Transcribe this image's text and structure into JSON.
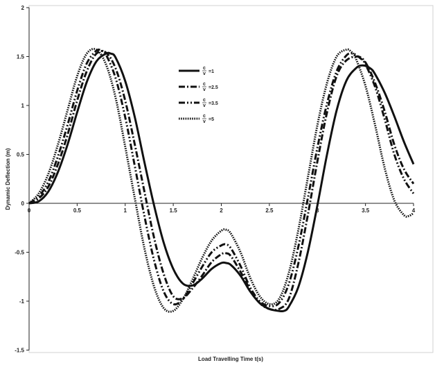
{
  "chart_data": {
    "type": "line",
    "title": "",
    "xlabel": "Load Travelling Time t(s)",
    "ylabel": "Dynamic Deflection (m)",
    "xlim": [
      0,
      4
    ],
    "ylim": [
      -1.5,
      2
    ],
    "xticks": [
      0,
      0.5,
      1,
      1.5,
      2,
      2.5,
      3,
      3.5,
      4
    ],
    "yticks": [
      -1.5,
      -1,
      -0.5,
      0,
      0.5,
      1,
      1.5,
      2
    ],
    "xtick_labels": [
      "0",
      "0.5",
      "1",
      "1.5",
      "2",
      "2.5",
      "3",
      "3.5",
      "4"
    ],
    "ytick_labels": [
      "-1.5",
      "-1",
      "-0.5",
      "0",
      "0.5",
      "1",
      "1.5",
      "2"
    ],
    "grid": false,
    "legend_position": "upper-center",
    "series": [
      {
        "name": "c/v = 1",
        "legend_label": "=1",
        "style": "solid",
        "color": "#111111",
        "x": [
          0,
          0.1,
          0.2,
          0.3,
          0.4,
          0.5,
          0.6,
          0.7,
          0.8,
          0.85,
          0.9,
          1.0,
          1.1,
          1.2,
          1.3,
          1.4,
          1.5,
          1.6,
          1.7,
          1.8,
          1.9,
          2.0,
          2.05,
          2.1,
          2.2,
          2.3,
          2.4,
          2.5,
          2.6,
          2.65,
          2.7,
          2.8,
          2.9,
          3.0,
          3.1,
          3.2,
          3.3,
          3.4,
          3.47,
          3.55,
          3.6,
          3.7,
          3.8,
          3.9,
          4.0
        ],
        "y": [
          0,
          0.02,
          0.12,
          0.32,
          0.6,
          0.93,
          1.24,
          1.45,
          1.53,
          1.53,
          1.49,
          1.25,
          0.88,
          0.42,
          -0.02,
          -0.4,
          -0.67,
          -0.82,
          -0.84,
          -0.77,
          -0.67,
          -0.61,
          -0.61,
          -0.63,
          -0.74,
          -0.9,
          -1.02,
          -1.08,
          -1.1,
          -1.1,
          -1.06,
          -0.86,
          -0.5,
          -0.02,
          0.5,
          0.95,
          1.25,
          1.38,
          1.41,
          1.38,
          1.32,
          1.13,
          0.89,
          0.63,
          0.4
        ]
      },
      {
        "name": "c/v = 2.5",
        "legend_label": "=2.5",
        "style": "dash-dot",
        "color": "#111111",
        "x": [
          0,
          0.1,
          0.2,
          0.3,
          0.4,
          0.5,
          0.6,
          0.7,
          0.8,
          0.9,
          1.0,
          1.1,
          1.2,
          1.3,
          1.4,
          1.5,
          1.6,
          1.7,
          1.8,
          1.9,
          2.0,
          2.05,
          2.1,
          2.2,
          2.3,
          2.4,
          2.5,
          2.6,
          2.7,
          2.8,
          2.9,
          3.0,
          3.1,
          3.2,
          3.3,
          3.42,
          3.5,
          3.6,
          3.7,
          3.8,
          3.9,
          4.0
        ],
        "y": [
          0,
          0.05,
          0.17,
          0.4,
          0.7,
          1.05,
          1.35,
          1.53,
          1.54,
          1.38,
          1.05,
          0.6,
          0.12,
          -0.35,
          -0.72,
          -0.95,
          -0.97,
          -0.87,
          -0.74,
          -0.6,
          -0.52,
          -0.51,
          -0.54,
          -0.7,
          -0.88,
          -1.02,
          -1.08,
          -1.08,
          -0.98,
          -0.62,
          -0.12,
          0.43,
          0.93,
          1.3,
          1.46,
          1.5,
          1.44,
          1.23,
          0.94,
          0.6,
          0.35,
          0.2
        ]
      },
      {
        "name": "c/v = 3.5",
        "legend_label": "=3.5",
        "style": "dash-dot-dot",
        "color": "#111111",
        "x": [
          0,
          0.1,
          0.2,
          0.3,
          0.4,
          0.5,
          0.6,
          0.7,
          0.75,
          0.8,
          0.9,
          1.0,
          1.1,
          1.2,
          1.3,
          1.4,
          1.5,
          1.6,
          1.7,
          1.8,
          1.9,
          2.0,
          2.05,
          2.1,
          2.2,
          2.3,
          2.4,
          2.5,
          2.6,
          2.7,
          2.8,
          2.9,
          3.0,
          3.1,
          3.2,
          3.3,
          3.37,
          3.45,
          3.5,
          3.6,
          3.7,
          3.8,
          3.9,
          4.0
        ],
        "y": [
          0,
          0.07,
          0.22,
          0.48,
          0.8,
          1.15,
          1.43,
          1.56,
          1.56,
          1.52,
          1.28,
          0.88,
          0.38,
          -0.13,
          -0.58,
          -0.9,
          -1.03,
          -0.98,
          -0.82,
          -0.65,
          -0.5,
          -0.43,
          -0.42,
          -0.46,
          -0.64,
          -0.86,
          -1.0,
          -1.05,
          -1.02,
          -0.83,
          -0.45,
          0.05,
          0.57,
          1.02,
          1.35,
          1.51,
          1.53,
          1.48,
          1.42,
          1.19,
          0.86,
          0.5,
          0.25,
          0.1
        ]
      },
      {
        "name": "c/v = 5",
        "legend_label": "=5",
        "style": "dotted",
        "color": "#111111",
        "x": [
          0,
          0.1,
          0.2,
          0.3,
          0.4,
          0.5,
          0.6,
          0.7,
          0.8,
          0.9,
          1.0,
          1.1,
          1.2,
          1.3,
          1.4,
          1.5,
          1.6,
          1.7,
          1.8,
          1.9,
          2.0,
          2.05,
          2.1,
          2.2,
          2.3,
          2.4,
          2.5,
          2.6,
          2.7,
          2.8,
          2.9,
          3.0,
          3.1,
          3.2,
          3.3,
          3.35,
          3.4,
          3.5,
          3.6,
          3.7,
          3.8,
          3.9,
          3.95,
          4.0
        ],
        "y": [
          0,
          0.1,
          0.3,
          0.6,
          0.95,
          1.3,
          1.53,
          1.57,
          1.42,
          1.08,
          0.58,
          0.05,
          -0.46,
          -0.85,
          -1.07,
          -1.1,
          -0.98,
          -0.78,
          -0.56,
          -0.38,
          -0.28,
          -0.27,
          -0.31,
          -0.5,
          -0.76,
          -0.95,
          -1.03,
          -0.98,
          -0.72,
          -0.28,
          0.26,
          0.8,
          1.23,
          1.5,
          1.57,
          1.55,
          1.48,
          1.2,
          0.8,
          0.36,
          0.03,
          -0.12,
          -0.13,
          -0.1
        ]
      }
    ]
  }
}
